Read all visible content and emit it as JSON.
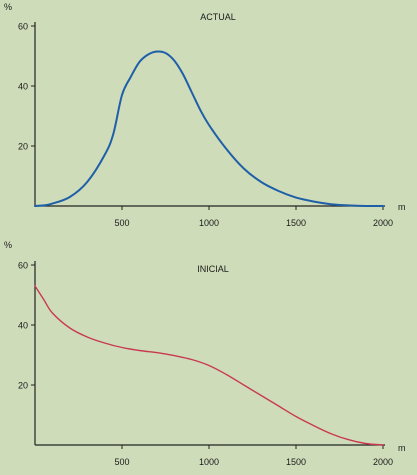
{
  "chart_data": [
    {
      "type": "line",
      "title": "ACTUAL",
      "xlabel": "m",
      "ylabel": "%",
      "xlim": [
        0,
        2000
      ],
      "ylim": [
        0,
        60
      ],
      "xticks": [
        500,
        1000,
        1500,
        2000
      ],
      "yticks": [
        20,
        40,
        60
      ],
      "color": "#1f5fa8",
      "series": [
        {
          "x": [
            0,
            50,
            100,
            200,
            300,
            400,
            450,
            500,
            550,
            600,
            650,
            700,
            750,
            800,
            850,
            900,
            950,
            1000,
            1100,
            1200,
            1300,
            1400,
            1500,
            1600,
            1700,
            1800,
            1900,
            2000
          ],
          "y": [
            0,
            0.2,
            0.8,
            3,
            8,
            17,
            24,
            37,
            43,
            48,
            50.5,
            51.5,
            51,
            48.5,
            44,
            38,
            32,
            27,
            19,
            12.5,
            8,
            5,
            2.8,
            1.5,
            0.6,
            0.2,
            0,
            0
          ]
        }
      ]
    },
    {
      "type": "line",
      "title": "INICIAL",
      "xlabel": "m",
      "ylabel": "%",
      "xlim": [
        0,
        2000
      ],
      "ylim": [
        0,
        60
      ],
      "xticks": [
        500,
        1000,
        1500,
        2000
      ],
      "yticks": [
        20,
        40,
        60
      ],
      "color": "#c83a52",
      "series": [
        {
          "x": [
            0,
            50,
            100,
            200,
            300,
            400,
            500,
            600,
            700,
            800,
            900,
            1000,
            1100,
            1200,
            1300,
            1400,
            1500,
            1600,
            1700,
            1800,
            1900,
            2000
          ],
          "y": [
            53,
            48.5,
            44,
            39,
            36,
            34,
            32.5,
            31.5,
            30.8,
            29.8,
            28.5,
            26.5,
            23.5,
            20,
            16.5,
            13,
            9.5,
            6.5,
            3.8,
            1.8,
            0.5,
            0
          ]
        }
      ]
    }
  ]
}
